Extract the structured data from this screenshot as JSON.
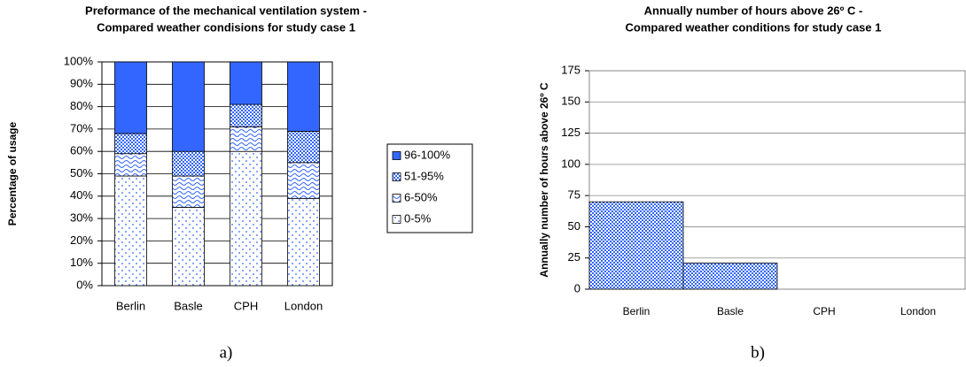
{
  "chart_data": [
    {
      "type": "stacked_bar",
      "title": [
        "Preformance of the mechanical ventilation system  -",
        "Compared weather condisions for study case 1"
      ],
      "ylabel": "Percentage of usage",
      "caption": "a)",
      "categories": [
        "Berlin",
        "Basle",
        "CPH",
        "London"
      ],
      "series": [
        {
          "name": "0-5%",
          "color": "#3366ff",
          "pattern": "dots",
          "values": [
            49,
            35,
            60,
            39
          ]
        },
        {
          "name": "6-50%",
          "color": "#3366ff",
          "pattern": "wave",
          "values": [
            10,
            14,
            11,
            16
          ]
        },
        {
          "name": "51-95%",
          "color": "#3366ff",
          "pattern": "checker",
          "values": [
            9,
            11,
            10,
            14
          ]
        },
        {
          "name": "96-100%",
          "color": "#3366ff",
          "pattern": "solid",
          "values": [
            32,
            40,
            19,
            31
          ]
        }
      ],
      "ylim": [
        0,
        100
      ],
      "yticks": [
        {
          "value": 0,
          "label": "0%"
        },
        {
          "value": 10,
          "label": "10%"
        },
        {
          "value": 20,
          "label": "20%"
        },
        {
          "value": 30,
          "label": "30%"
        },
        {
          "value": 40,
          "label": "40%"
        },
        {
          "value": 50,
          "label": "50%"
        },
        {
          "value": 60,
          "label": "60%"
        },
        {
          "value": 70,
          "label": "70%"
        },
        {
          "value": 80,
          "label": "80%"
        },
        {
          "value": 90,
          "label": "90%"
        },
        {
          "value": 100,
          "label": "100%"
        }
      ],
      "grid": true,
      "legend": "right"
    },
    {
      "type": "bar",
      "title": [
        "Annually number of hours above 26º C -",
        "Compared weather conditions for study case 1"
      ],
      "ylabel": "Annually number of hours above 26º C",
      "caption": "b)",
      "categories": [
        "Berlin",
        "Basle",
        "CPH",
        "London"
      ],
      "values": [
        70,
        21,
        0,
        0
      ],
      "color": "#3366ff",
      "pattern": "checker",
      "ylim": [
        0,
        175
      ],
      "yticks": [
        0,
        25,
        50,
        75,
        100,
        125,
        150,
        175
      ],
      "grid": true
    }
  ]
}
